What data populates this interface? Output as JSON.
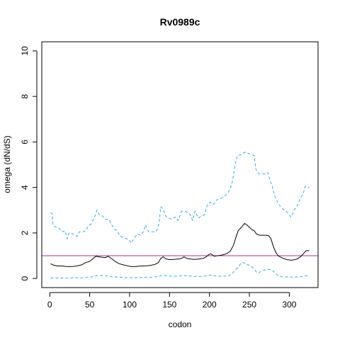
{
  "chart_data": {
    "type": "line",
    "title": "Rv0989c",
    "xlabel": "codon",
    "ylabel": "omega (dN/dS)",
    "xlim": [
      -10,
      336
    ],
    "ylim": [
      -0.4,
      10.4
    ],
    "x_ticks": [
      0,
      50,
      100,
      150,
      200,
      250,
      300
    ],
    "y_ticks": [
      0,
      2,
      4,
      6,
      8,
      10
    ],
    "grid": false,
    "reference_line": {
      "y": 1,
      "color": "#b03090"
    },
    "series": [
      {
        "role": "upper-bound",
        "color": "#3aa6e0",
        "style": "dashed",
        "points": [
          [
            1,
            2.9
          ],
          [
            3,
            2.85
          ],
          [
            4,
            2.35
          ],
          [
            8,
            2.25
          ],
          [
            12,
            2.2
          ],
          [
            16,
            2.05
          ],
          [
            19,
            2.1
          ],
          [
            22,
            1.75
          ],
          [
            24,
            2.0
          ],
          [
            30,
            1.95
          ],
          [
            34,
            1.85
          ],
          [
            37,
            2.05
          ],
          [
            42,
            2.05
          ],
          [
            45,
            2.1
          ],
          [
            48,
            2.3
          ],
          [
            52,
            2.4
          ],
          [
            56,
            2.7
          ],
          [
            59,
            3.0
          ],
          [
            62,
            2.8
          ],
          [
            66,
            2.75
          ],
          [
            70,
            2.6
          ],
          [
            74,
            2.6
          ],
          [
            77,
            2.4
          ],
          [
            80,
            2.2
          ],
          [
            84,
            2.1
          ],
          [
            88,
            1.85
          ],
          [
            92,
            1.8
          ],
          [
            96,
            1.75
          ],
          [
            99,
            1.7
          ],
          [
            102,
            1.55
          ],
          [
            106,
            1.8
          ],
          [
            110,
            1.95
          ],
          [
            114,
            1.9
          ],
          [
            118,
            2.1
          ],
          [
            120,
            2.35
          ],
          [
            124,
            2.05
          ],
          [
            128,
            2.05
          ],
          [
            131,
            2.05
          ],
          [
            134,
            2.1
          ],
          [
            137,
            2.45
          ],
          [
            139,
            3.15
          ],
          [
            142,
            3.05
          ],
          [
            145,
            2.75
          ],
          [
            149,
            2.65
          ],
          [
            153,
            2.6
          ],
          [
            157,
            2.7
          ],
          [
            161,
            2.55
          ],
          [
            165,
            2.95
          ],
          [
            170,
            2.95
          ],
          [
            175,
            2.85
          ],
          [
            179,
            2.55
          ],
          [
            182,
            2.95
          ],
          [
            186,
            2.65
          ],
          [
            190,
            2.75
          ],
          [
            194,
            2.8
          ],
          [
            197,
            3.2
          ],
          [
            201,
            3.35
          ],
          [
            205,
            3.25
          ],
          [
            209,
            3.45
          ],
          [
            213,
            3.5
          ],
          [
            216,
            3.55
          ],
          [
            220,
            3.65
          ],
          [
            223,
            3.75
          ],
          [
            226,
            3.95
          ],
          [
            229,
            4.3
          ],
          [
            232,
            5.0
          ],
          [
            235,
            5.4
          ],
          [
            240,
            5.45
          ],
          [
            244,
            5.55
          ],
          [
            248,
            5.5
          ],
          [
            252,
            5.45
          ],
          [
            256,
            5.4
          ],
          [
            258,
            4.8
          ],
          [
            262,
            4.6
          ],
          [
            266,
            4.6
          ],
          [
            270,
            4.6
          ],
          [
            273,
            4.65
          ],
          [
            276,
            4.3
          ],
          [
            279,
            4.0
          ],
          [
            282,
            3.6
          ],
          [
            286,
            3.3
          ],
          [
            290,
            3.1
          ],
          [
            294,
            3.0
          ],
          [
            298,
            2.9
          ],
          [
            302,
            2.7
          ],
          [
            306,
            3.0
          ],
          [
            310,
            3.2
          ],
          [
            314,
            3.55
          ],
          [
            317,
            3.7
          ],
          [
            320,
            4.05
          ],
          [
            323,
            4.0
          ],
          [
            325,
            4.0
          ]
        ]
      },
      {
        "role": "estimate",
        "color": "#000000",
        "style": "solid",
        "points": [
          [
            1,
            0.65
          ],
          [
            5,
            0.58
          ],
          [
            10,
            0.55
          ],
          [
            15,
            0.55
          ],
          [
            20,
            0.53
          ],
          [
            25,
            0.52
          ],
          [
            30,
            0.53
          ],
          [
            35,
            0.56
          ],
          [
            40,
            0.6
          ],
          [
            45,
            0.7
          ],
          [
            50,
            0.75
          ],
          [
            55,
            0.9
          ],
          [
            58,
            0.98
          ],
          [
            62,
            0.95
          ],
          [
            66,
            0.93
          ],
          [
            70,
            0.92
          ],
          [
            73,
            0.98
          ],
          [
            77,
            0.88
          ],
          [
            82,
            0.75
          ],
          [
            87,
            0.65
          ],
          [
            92,
            0.6
          ],
          [
            97,
            0.56
          ],
          [
            102,
            0.52
          ],
          [
            107,
            0.52
          ],
          [
            112,
            0.54
          ],
          [
            117,
            0.55
          ],
          [
            122,
            0.56
          ],
          [
            127,
            0.58
          ],
          [
            132,
            0.62
          ],
          [
            136,
            0.7
          ],
          [
            139,
            0.88
          ],
          [
            142,
            0.95
          ],
          [
            146,
            0.85
          ],
          [
            150,
            0.83
          ],
          [
            155,
            0.84
          ],
          [
            160,
            0.85
          ],
          [
            165,
            0.88
          ],
          [
            168,
            0.95
          ],
          [
            172,
            0.88
          ],
          [
            177,
            0.85
          ],
          [
            182,
            0.84
          ],
          [
            187,
            0.86
          ],
          [
            192,
            0.88
          ],
          [
            196,
            0.95
          ],
          [
            199,
            1.05
          ],
          [
            202,
            1.08
          ],
          [
            206,
            0.98
          ],
          [
            210,
            1.0
          ],
          [
            214,
            1.02
          ],
          [
            218,
            1.05
          ],
          [
            222,
            1.1
          ],
          [
            226,
            1.2
          ],
          [
            230,
            1.45
          ],
          [
            233,
            1.8
          ],
          [
            236,
            2.1
          ],
          [
            240,
            2.25
          ],
          [
            244,
            2.42
          ],
          [
            247,
            2.35
          ],
          [
            250,
            2.25
          ],
          [
            253,
            2.15
          ],
          [
            256,
            2.1
          ],
          [
            259,
            1.95
          ],
          [
            263,
            1.9
          ],
          [
            267,
            1.9
          ],
          [
            271,
            1.9
          ],
          [
            274,
            1.88
          ],
          [
            277,
            1.75
          ],
          [
            280,
            1.4
          ],
          [
            283,
            1.15
          ],
          [
            286,
            1.0
          ],
          [
            290,
            0.92
          ],
          [
            294,
            0.86
          ],
          [
            298,
            0.82
          ],
          [
            302,
            0.8
          ],
          [
            306,
            0.82
          ],
          [
            310,
            0.86
          ],
          [
            314,
            0.95
          ],
          [
            318,
            1.1
          ],
          [
            321,
            1.22
          ],
          [
            325,
            1.22
          ]
        ]
      },
      {
        "role": "lower-bound",
        "color": "#3aa6e0",
        "style": "dashed",
        "points": [
          [
            1,
            0.02
          ],
          [
            10,
            0.02
          ],
          [
            20,
            0.02
          ],
          [
            30,
            0.03
          ],
          [
            40,
            0.03
          ],
          [
            48,
            0.05
          ],
          [
            54,
            0.08
          ],
          [
            58,
            0.12
          ],
          [
            62,
            0.13
          ],
          [
            66,
            0.12
          ],
          [
            70,
            0.12
          ],
          [
            74,
            0.1
          ],
          [
            80,
            0.07
          ],
          [
            88,
            0.05
          ],
          [
            96,
            0.04
          ],
          [
            104,
            0.03
          ],
          [
            112,
            0.04
          ],
          [
            120,
            0.05
          ],
          [
            128,
            0.06
          ],
          [
            134,
            0.08
          ],
          [
            139,
            0.12
          ],
          [
            143,
            0.13
          ],
          [
            148,
            0.11
          ],
          [
            154,
            0.1
          ],
          [
            160,
            0.1
          ],
          [
            166,
            0.12
          ],
          [
            170,
            0.13
          ],
          [
            176,
            0.11
          ],
          [
            182,
            0.09
          ],
          [
            188,
            0.09
          ],
          [
            194,
            0.1
          ],
          [
            198,
            0.13
          ],
          [
            202,
            0.15
          ],
          [
            206,
            0.12
          ],
          [
            212,
            0.1
          ],
          [
            218,
            0.1
          ],
          [
            224,
            0.12
          ],
          [
            228,
            0.2
          ],
          [
            232,
            0.35
          ],
          [
            236,
            0.5
          ],
          [
            240,
            0.7
          ],
          [
            244,
            0.68
          ],
          [
            248,
            0.6
          ],
          [
            252,
            0.55
          ],
          [
            256,
            0.4
          ],
          [
            259,
            0.28
          ],
          [
            262,
            0.25
          ],
          [
            266,
            0.35
          ],
          [
            270,
            0.38
          ],
          [
            274,
            0.4
          ],
          [
            278,
            0.38
          ],
          [
            282,
            0.25
          ],
          [
            286,
            0.12
          ],
          [
            290,
            0.08
          ],
          [
            296,
            0.07
          ],
          [
            302,
            0.06
          ],
          [
            308,
            0.06
          ],
          [
            314,
            0.08
          ],
          [
            318,
            0.1
          ],
          [
            321,
            0.12
          ],
          [
            325,
            0.11
          ]
        ]
      }
    ]
  }
}
